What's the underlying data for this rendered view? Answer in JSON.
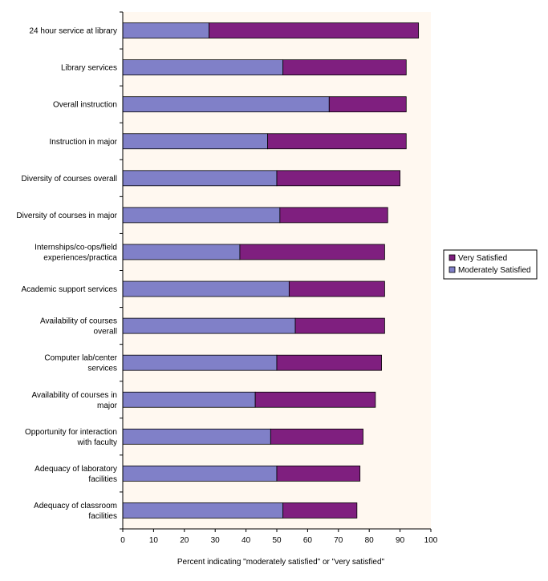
{
  "chart_data": {
    "type": "bar",
    "orientation": "horizontal",
    "stacked": true,
    "categories": [
      "24 hour service at library",
      "Library services",
      "Overall instruction",
      "Instruction in major",
      "Diversity of courses overall",
      "Diversity of courses in major",
      "Internships/co-ops/field experiences/practica",
      "Academic support services",
      "Availability of courses overall",
      "Computer lab/center services",
      "Availability of courses in major",
      "Opportunity for interaction with faculty",
      "Adequacy of laboratory facilities",
      "Adequacy of classroom facilities"
    ],
    "category_label_lines": [
      [
        "24 hour service at library"
      ],
      [
        "Library services"
      ],
      [
        "Overall instruction"
      ],
      [
        "Instruction in major"
      ],
      [
        "Diversity of courses overall"
      ],
      [
        "Diversity of courses in major"
      ],
      [
        "Internships/co-ops/field",
        "experiences/practica"
      ],
      [
        "Academic support services"
      ],
      [
        "Availability of courses",
        "overall"
      ],
      [
        "Computer lab/center",
        "services"
      ],
      [
        "Availability of courses in",
        "major"
      ],
      [
        "Opportunity for interaction",
        "with faculty"
      ],
      [
        "Adequacy of laboratory",
        "facilities"
      ],
      [
        "Adequacy of classroom",
        "facilities"
      ]
    ],
    "series": [
      {
        "name": "Moderately Satisfied",
        "color": "#8080C8",
        "values": [
          28,
          52,
          67,
          47,
          50,
          51,
          38,
          54,
          56,
          50,
          43,
          48,
          50,
          52
        ]
      },
      {
        "name": "Very Satisfied",
        "color": "#7F1F7F",
        "values": [
          68,
          40,
          25,
          45,
          40,
          35,
          47,
          31,
          29,
          34,
          39,
          30,
          27,
          24
        ]
      }
    ],
    "xlabel": "Percent indicating \"moderately satisfied\" or \"very satisfied\"",
    "ylabel": "",
    "xlim": [
      0,
      100
    ],
    "xticks": [
      0,
      10,
      20,
      30,
      40,
      50,
      60,
      70,
      80,
      90,
      100
    ],
    "grid": false,
    "plot_background": "#FFF8F0",
    "legend_position": "right",
    "legend": [
      {
        "name": "Very Satisfied",
        "color": "#7F1F7F"
      },
      {
        "name": "Moderately Satisfied",
        "color": "#8080C8"
      }
    ]
  }
}
